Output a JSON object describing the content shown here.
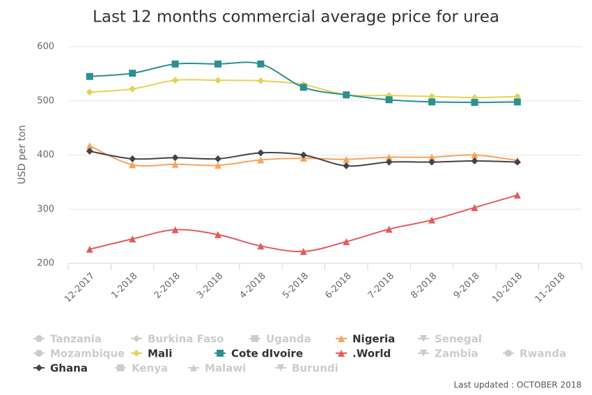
{
  "chart_data": {
    "type": "line",
    "title": "Last 12 months commercial average price for urea",
    "y_label": "USD per ton",
    "footer": "Last updated : OCTOBER 2018",
    "categories": [
      "12-2017",
      "1-2018",
      "2-2018",
      "3-2018",
      "4-2018",
      "5-2018",
      "6-2018",
      "7-2018",
      "8-2018",
      "9-2018",
      "10-2018",
      "11-2018"
    ],
    "ylim": [
      200,
      600
    ],
    "yticks": [
      200,
      300,
      400,
      500,
      600
    ],
    "grid": true,
    "smooth": true,
    "legend": "bottom",
    "series": [
      {
        "name": "Tanzania",
        "marker": "circle",
        "visible": false,
        "color": "#7cb5ec",
        "values": [
          null,
          null,
          null,
          null,
          null,
          null,
          null,
          null,
          null,
          null,
          null,
          null
        ]
      },
      {
        "name": "Burkina Faso",
        "marker": "diamond",
        "visible": false,
        "color": "#434348",
        "values": [
          null,
          null,
          null,
          null,
          null,
          null,
          null,
          null,
          null,
          null,
          null,
          null
        ]
      },
      {
        "name": "Uganda",
        "marker": "square",
        "visible": false,
        "color": "#90ed7d",
        "values": [
          null,
          null,
          null,
          null,
          null,
          null,
          null,
          null,
          null,
          null,
          null,
          null
        ]
      },
      {
        "name": "Nigeria",
        "marker": "triangle",
        "visible": true,
        "color": "#f7a35c",
        "values": [
          417,
          382,
          383,
          381,
          391,
          394,
          392,
          396,
          396,
          400,
          390,
          null
        ]
      },
      {
        "name": "Senegal",
        "marker": "triangle-down",
        "visible": false,
        "color": "#8085e9",
        "values": [
          null,
          null,
          null,
          null,
          null,
          null,
          null,
          null,
          null,
          null,
          null,
          null
        ]
      },
      {
        "name": "Mozambique",
        "marker": "circle",
        "visible": false,
        "color": "#f15c80",
        "values": [
          null,
          null,
          null,
          null,
          null,
          null,
          null,
          null,
          null,
          null,
          null,
          null
        ]
      },
      {
        "name": "Mali",
        "marker": "diamond",
        "visible": true,
        "color": "#e4d354",
        "values": [
          516,
          522,
          538,
          538,
          537,
          530,
          511,
          510,
          508,
          506,
          508,
          null
        ]
      },
      {
        "name": "Cote dIvoire",
        "marker": "square",
        "visible": true,
        "color": "#2b908f",
        "values": [
          545,
          551,
          568,
          568,
          568,
          525,
          511,
          502,
          498,
          497,
          498,
          null
        ]
      },
      {
        "name": ".World",
        "marker": "triangle",
        "visible": true,
        "color": "#e35b5b",
        "values": [
          226,
          245,
          262,
          253,
          232,
          222,
          240,
          263,
          280,
          303,
          326,
          null
        ]
      },
      {
        "name": "Zambia",
        "marker": "triangle-down",
        "visible": false,
        "color": "#91e8e1",
        "values": [
          null,
          null,
          null,
          null,
          null,
          null,
          null,
          null,
          null,
          null,
          null,
          null
        ]
      },
      {
        "name": "Rwanda",
        "marker": "circle",
        "visible": false,
        "color": "#7cb5ec",
        "values": [
          null,
          null,
          null,
          null,
          null,
          null,
          null,
          null,
          null,
          null,
          null,
          null
        ]
      },
      {
        "name": "Ghana",
        "marker": "diamond",
        "visible": true,
        "color": "#434348",
        "values": [
          407,
          393,
          395,
          393,
          404,
          400,
          380,
          387,
          387,
          389,
          387,
          null
        ]
      },
      {
        "name": "Kenya",
        "marker": "square",
        "visible": false,
        "color": "#90ed7d",
        "values": [
          null,
          null,
          null,
          null,
          null,
          null,
          null,
          null,
          null,
          null,
          null,
          null
        ]
      },
      {
        "name": "Malawi",
        "marker": "triangle",
        "visible": false,
        "color": "#f7a35c",
        "values": [
          null,
          null,
          null,
          null,
          null,
          null,
          null,
          null,
          null,
          null,
          null,
          null
        ]
      },
      {
        "name": "Burundi",
        "marker": "triangle-down",
        "visible": false,
        "color": "#8085e9",
        "values": [
          null,
          null,
          null,
          null,
          null,
          null,
          null,
          null,
          null,
          null,
          null,
          null
        ]
      }
    ]
  }
}
